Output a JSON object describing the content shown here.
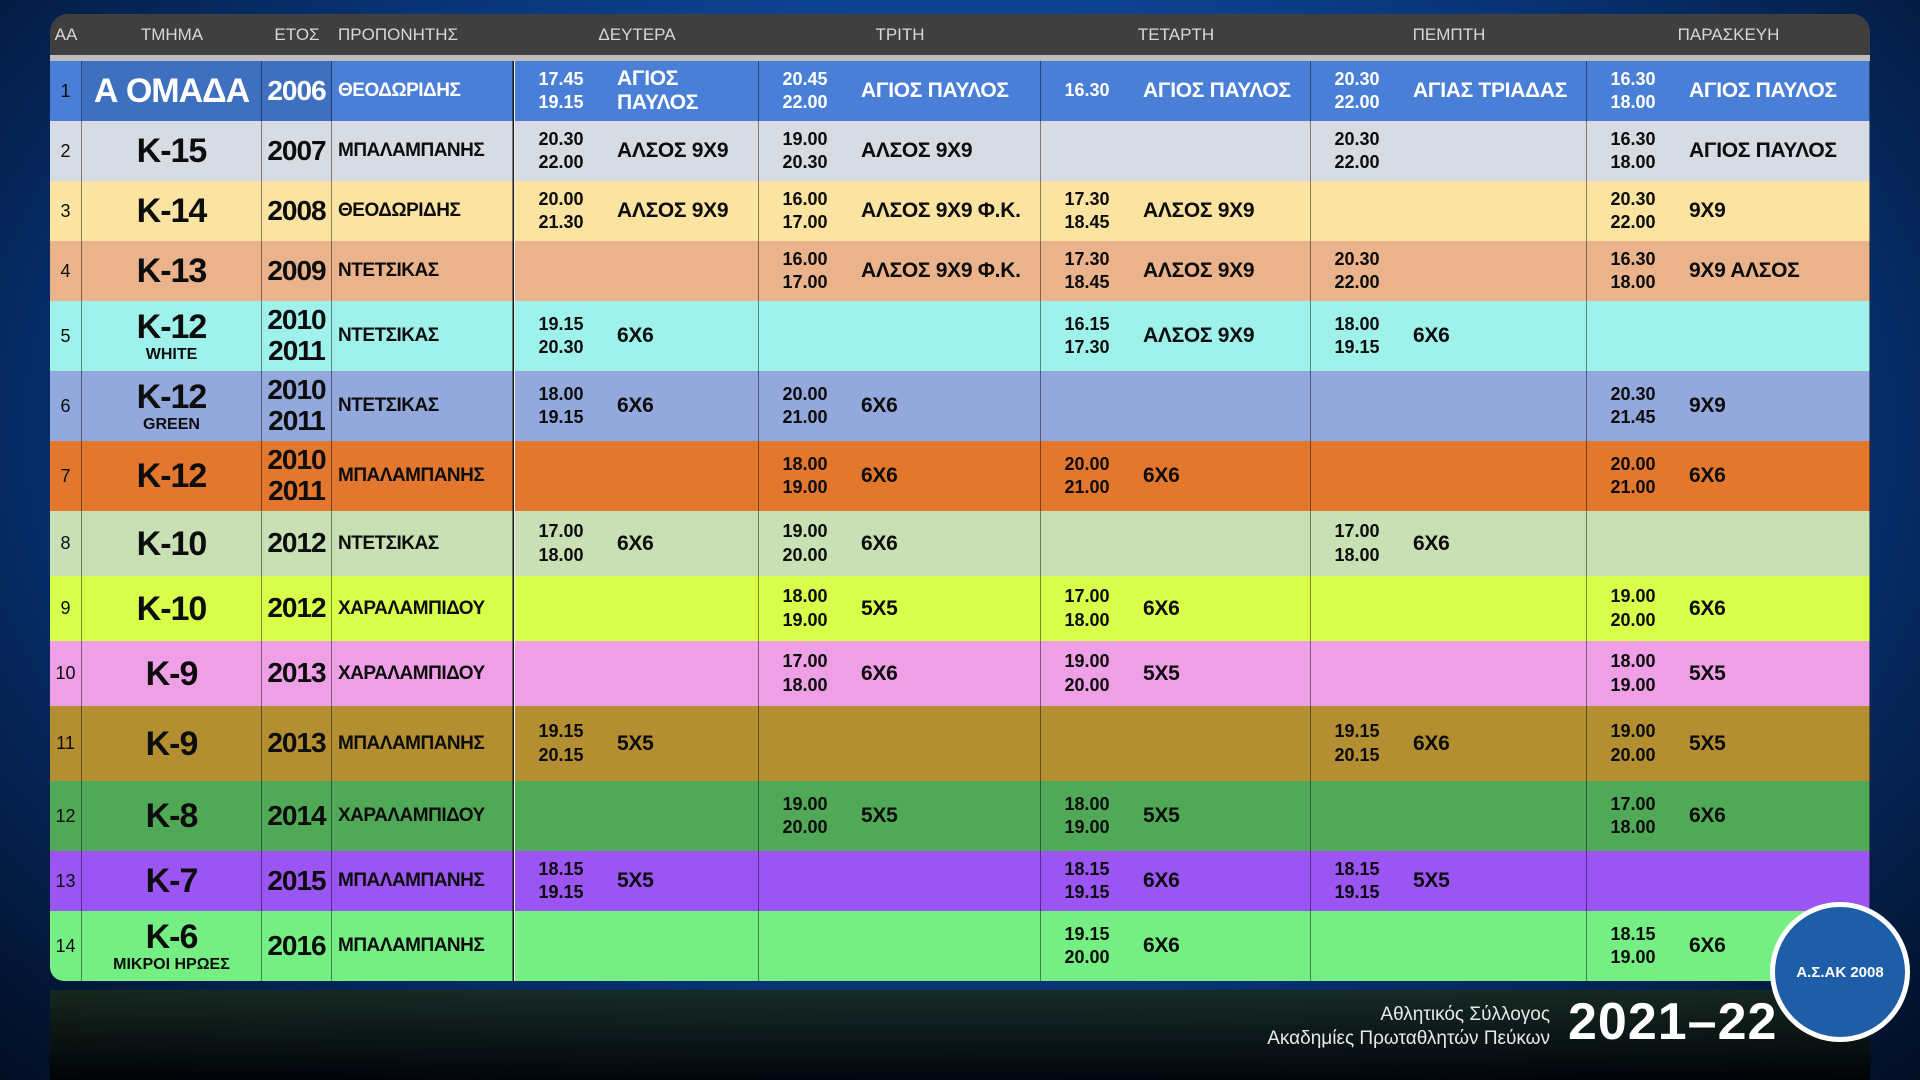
{
  "headers": {
    "aa": "ΑΑ",
    "team": "ΤΜΗΜΑ",
    "year": "ΕΤΟΣ",
    "coach": "ΠΡΟΠΟΝΗΤΗΣ",
    "days": [
      "ΔΕΥΤΕΡΑ",
      "ΤΡΙΤΗ",
      "ΤΕΤΑΡΤΗ",
      "ΠΕΜΠΤΗ",
      "ΠΑΡΑΣΚΕΥΗ"
    ]
  },
  "rows": [
    {
      "aa": "1",
      "team": "Α ΟΜΑΔΑ",
      "sub": "",
      "year1": "2006",
      "year2": "",
      "coach": "ΘΕΟΔΩΡΙΔΗΣ",
      "color": "#4a7fd8",
      "slots": [
        {
          "t1": "17.45",
          "t2": "19.15",
          "v": "ΑΓΙΟΣ ΠΑΥΛΟΣ"
        },
        {
          "t1": "20.45",
          "t2": "22.00",
          "v": "ΑΓΙΟΣ ΠΑΥΛΟΣ"
        },
        {
          "t1": "16.30",
          "t2": "",
          "v": "ΑΓΙΟΣ ΠΑΥΛΟΣ"
        },
        {
          "t1": "20.30",
          "t2": "22.00",
          "v": "ΑΓΙΑΣ ΤΡΙΑΔΑΣ"
        },
        {
          "t1": "16.30",
          "t2": "18.00",
          "v": "ΑΓΙΟΣ ΠΑΥΛΟΣ"
        }
      ]
    },
    {
      "aa": "2",
      "team": "Κ-15",
      "sub": "",
      "year1": "2007",
      "year2": "",
      "coach": "ΜΠΑΛΑΜΠΑΝΗΣ",
      "color": "#d7dce4",
      "slots": [
        {
          "t1": "20.30",
          "t2": "22.00",
          "v": "ΑΛΣΟΣ 9Χ9"
        },
        {
          "t1": "19.00",
          "t2": "20.30",
          "v": "ΑΛΣΟΣ 9Χ9"
        },
        {
          "t1": "",
          "t2": "",
          "v": ""
        },
        {
          "t1": "20.30",
          "t2": "22.00",
          "v": ""
        },
        {
          "t1": "16.30",
          "t2": "18.00",
          "v": "ΑΓΙΟΣ ΠΑΥΛΟΣ"
        }
      ]
    },
    {
      "aa": "3",
      "team": "Κ-14",
      "sub": "",
      "year1": "2008",
      "year2": "",
      "coach": "ΘΕΟΔΩΡΙΔΗΣ",
      "color": "#fbe3a1",
      "slots": [
        {
          "t1": "20.00",
          "t2": "21.30",
          "v": "ΑΛΣΟΣ 9Χ9"
        },
        {
          "t1": "16.00",
          "t2": "17.00",
          "v": "ΑΛΣΟΣ 9Χ9 Φ.Κ."
        },
        {
          "t1": "17.30",
          "t2": "18.45",
          "v": "ΑΛΣΟΣ 9Χ9"
        },
        {
          "t1": "",
          "t2": "",
          "v": ""
        },
        {
          "t1": "20.30",
          "t2": "22.00",
          "v": "9Χ9"
        }
      ]
    },
    {
      "aa": "4",
      "team": "Κ-13",
      "sub": "",
      "year1": "2009",
      "year2": "",
      "coach": "ΝΤΕΤΣΙΚΑΣ",
      "color": "#ebb38c",
      "slots": [
        {
          "t1": "",
          "t2": "",
          "v": ""
        },
        {
          "t1": "16.00",
          "t2": "17.00",
          "v": "ΑΛΣΟΣ 9Χ9 Φ.Κ."
        },
        {
          "t1": "17.30",
          "t2": "18.45",
          "v": "ΑΛΣΟΣ 9Χ9"
        },
        {
          "t1": "20.30",
          "t2": "22.00",
          "v": ""
        },
        {
          "t1": "16.30",
          "t2": "18.00",
          "v": "9Χ9 ΑΛΣΟΣ"
        }
      ]
    },
    {
      "aa": "5",
      "team": "Κ-12",
      "sub": "WHITE",
      "year1": "2010",
      "year2": "2011",
      "coach": "ΝΤΕΤΣΙΚΑΣ",
      "color": "#9ff2ec",
      "slots": [
        {
          "t1": "19.15",
          "t2": "20.30",
          "v": "6Χ6"
        },
        {
          "t1": "",
          "t2": "",
          "v": ""
        },
        {
          "t1": "16.15",
          "t2": "17.30",
          "v": "ΑΛΣΟΣ 9Χ9"
        },
        {
          "t1": "18.00",
          "t2": "19.15",
          "v": "6Χ6"
        },
        {
          "t1": "",
          "t2": "",
          "v": ""
        }
      ]
    },
    {
      "aa": "6",
      "team": "Κ-12",
      "sub": "GREEN",
      "year1": "2010",
      "year2": "2011",
      "coach": "ΝΤΕΤΣΙΚΑΣ",
      "color": "#93a8dc",
      "slots": [
        {
          "t1": "18.00",
          "t2": "19.15",
          "v": "6Χ6"
        },
        {
          "t1": "20.00",
          "t2": "21.00",
          "v": "6Χ6"
        },
        {
          "t1": "",
          "t2": "",
          "v": ""
        },
        {
          "t1": "",
          "t2": "",
          "v": ""
        },
        {
          "t1": "20.30",
          "t2": "21.45",
          "v": "9Χ9"
        }
      ]
    },
    {
      "aa": "7",
      "team": "Κ-12",
      "sub": "",
      "year1": "2010",
      "year2": "2011",
      "coach": "ΜΠΑΛΑΜΠΑΝΗΣ",
      "color": "#e3772e",
      "slots": [
        {
          "t1": "",
          "t2": "",
          "v": ""
        },
        {
          "t1": "18.00",
          "t2": "19.00",
          "v": "6Χ6"
        },
        {
          "t1": "20.00",
          "t2": "21.00",
          "v": "6Χ6"
        },
        {
          "t1": "",
          "t2": "",
          "v": ""
        },
        {
          "t1": "20.00",
          "t2": "21.00",
          "v": "6Χ6"
        }
      ]
    },
    {
      "aa": "8",
      "team": "Κ-10",
      "sub": "",
      "year1": "2012",
      "year2": "",
      "coach": "ΝΤΕΤΣΙΚΑΣ",
      "color": "#c8e0b4",
      "slots": [
        {
          "t1": "17.00",
          "t2": "18.00",
          "v": "6Χ6"
        },
        {
          "t1": "19.00",
          "t2": "20.00",
          "v": "6Χ6"
        },
        {
          "t1": "",
          "t2": "",
          "v": ""
        },
        {
          "t1": "17.00",
          "t2": "18.00",
          "v": "6Χ6"
        },
        {
          "t1": "",
          "t2": "",
          "v": ""
        }
      ]
    },
    {
      "aa": "9",
      "team": "Κ-10",
      "sub": "",
      "year1": "2012",
      "year2": "",
      "coach": "ΧΑΡΑΛΑΜΠΙΔΟΥ",
      "color": "#d8ff4a",
      "slots": [
        {
          "t1": "",
          "t2": "",
          "v": ""
        },
        {
          "t1": "18.00",
          "t2": "19.00",
          "v": "5Χ5"
        },
        {
          "t1": "17.00",
          "t2": "18.00",
          "v": "6Χ6"
        },
        {
          "t1": "",
          "t2": "",
          "v": ""
        },
        {
          "t1": "19.00",
          "t2": "20.00",
          "v": "6Χ6"
        }
      ]
    },
    {
      "aa": "10",
      "team": "Κ-9",
      "sub": "",
      "year1": "2013",
      "year2": "",
      "coach": "ΧΑΡΑΛΑΜΠΙΔΟΥ",
      "color": "#ee9fe6",
      "slots": [
        {
          "t1": "",
          "t2": "",
          "v": ""
        },
        {
          "t1": "17.00",
          "t2": "18.00",
          "v": "6Χ6"
        },
        {
          "t1": "19.00",
          "t2": "20.00",
          "v": "5Χ5"
        },
        {
          "t1": "",
          "t2": "",
          "v": ""
        },
        {
          "t1": "18.00",
          "t2": "19.00",
          "v": "5Χ5"
        }
      ]
    },
    {
      "aa": "11",
      "team": "Κ-9",
      "sub": "",
      "year1": "2013",
      "year2": "",
      "coach": "ΜΠΑΛΑΜΠΑΝΗΣ",
      "color": "#b48f31",
      "slots": [
        {
          "t1": "19.15",
          "t2": "20.15",
          "v": "5Χ5"
        },
        {
          "t1": "",
          "t2": "",
          "v": ""
        },
        {
          "t1": "",
          "t2": "",
          "v": ""
        },
        {
          "t1": "19.15",
          "t2": "20.15",
          "v": "6Χ6"
        },
        {
          "t1": "19.00",
          "t2": "20.00",
          "v": "5Χ5"
        }
      ]
    },
    {
      "aa": "12",
      "team": "Κ-8",
      "sub": "",
      "year1": "2014",
      "year2": "",
      "coach": "ΧΑΡΑΛΑΜΠΙΔΟΥ",
      "color": "#4fa957",
      "slots": [
        {
          "t1": "",
          "t2": "",
          "v": ""
        },
        {
          "t1": "19.00",
          "t2": "20.00",
          "v": "5Χ5"
        },
        {
          "t1": "18.00",
          "t2": "19.00",
          "v": "5Χ5"
        },
        {
          "t1": "",
          "t2": "",
          "v": ""
        },
        {
          "t1": "17.00",
          "t2": "18.00",
          "v": "6Χ6"
        }
      ]
    },
    {
      "aa": "13",
      "team": "Κ-7",
      "sub": "",
      "year1": "2015",
      "year2": "",
      "coach": "ΜΠΑΛΑΜΠΑΝΗΣ",
      "color": "#9a55f2",
      "slots": [
        {
          "t1": "18.15",
          "t2": "19.15",
          "v": "5Χ5"
        },
        {
          "t1": "",
          "t2": "",
          "v": ""
        },
        {
          "t1": "18.15",
          "t2": "19.15",
          "v": "6Χ6"
        },
        {
          "t1": "18.15",
          "t2": "19.15",
          "v": "5Χ5"
        },
        {
          "t1": "",
          "t2": "",
          "v": ""
        }
      ]
    },
    {
      "aa": "14",
      "team": "Κ-6",
      "sub": "ΜΙΚΡΟΙ ΗΡΩΕΣ",
      "year1": "2016",
      "year2": "",
      "coach": "ΜΠΑΛΑΜΠΑΝΗΣ",
      "color": "#75ef83",
      "slots": [
        {
          "t1": "",
          "t2": "",
          "v": ""
        },
        {
          "t1": "",
          "t2": "",
          "v": ""
        },
        {
          "t1": "19.15",
          "t2": "20.00",
          "v": "6Χ6"
        },
        {
          "t1": "",
          "t2": "",
          "v": ""
        },
        {
          "t1": "18.15",
          "t2": "19.00",
          "v": "6Χ6"
        }
      ]
    }
  ],
  "footer": {
    "club_line1": "Αθλητικός Σύλλογος",
    "club_line2": "Ακαδημίες Πρωταθλητών Πεύκων",
    "season": "2021–22"
  },
  "logo": {
    "name": "shield-logo",
    "text": "Α.Σ.ΑΚ 2008"
  }
}
